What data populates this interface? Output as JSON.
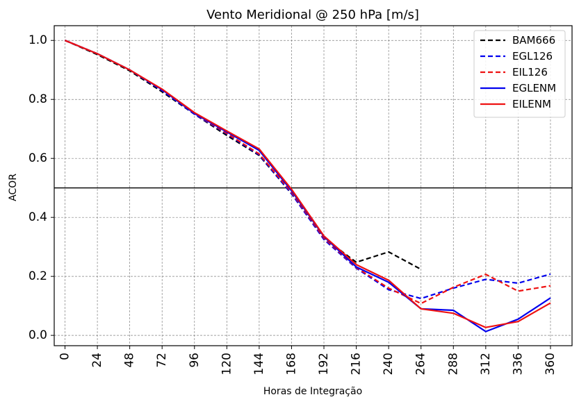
{
  "chart_data": {
    "type": "line",
    "title": "Vento Meridional @ 250 hPa [m/s]",
    "xlabel": "Horas de Integração",
    "ylabel": "ACOR",
    "xlim": [
      -8,
      376
    ],
    "ylim": [
      -0.035,
      1.05
    ],
    "xticks": [
      0,
      24,
      48,
      72,
      96,
      120,
      144,
      168,
      192,
      216,
      240,
      264,
      288,
      312,
      336,
      360
    ],
    "xtick_labels": [
      "0",
      "24",
      "48",
      "72",
      "96",
      "120",
      "144",
      "168",
      "192",
      "216",
      "240",
      "264",
      "288",
      "312",
      "336",
      "360"
    ],
    "yticks": [
      0.0,
      0.2,
      0.4,
      0.6,
      0.8,
      1.0
    ],
    "ytick_labels": [
      "0.0",
      "0.2",
      "0.4",
      "0.6",
      "0.8",
      "1.0"
    ],
    "grid": true,
    "reference_line": {
      "y": 0.5,
      "color": "#000000"
    },
    "legend_position": "top-right",
    "series": [
      {
        "name": "BAM666",
        "color": "#000000",
        "style": "dashed",
        "x": [
          0,
          24,
          48,
          72,
          96,
          120,
          144,
          168,
          192,
          216,
          240,
          264
        ],
        "values": [
          1.0,
          0.952,
          0.897,
          0.826,
          0.75,
          0.678,
          0.61,
          0.48,
          0.33,
          0.248,
          0.283,
          0.224
        ]
      },
      {
        "name": "EGL126",
        "color": "#0000ee",
        "style": "dashed",
        "x": [
          0,
          24,
          48,
          72,
          96,
          120,
          144,
          168,
          192,
          216,
          240,
          264,
          288,
          312,
          336,
          360
        ],
        "values": [
          1.0,
          0.955,
          0.9,
          0.83,
          0.75,
          0.683,
          0.612,
          0.48,
          0.325,
          0.228,
          0.155,
          0.125,
          0.16,
          0.19,
          0.177,
          0.208
        ]
      },
      {
        "name": "EIL126",
        "color": "#ee1111",
        "style": "dashed",
        "x": [
          0,
          24,
          48,
          72,
          96,
          120,
          144,
          168,
          192,
          216,
          240,
          264,
          288,
          312,
          336,
          360
        ],
        "values": [
          1.0,
          0.955,
          0.9,
          0.833,
          0.752,
          0.685,
          0.615,
          0.485,
          0.33,
          0.23,
          0.16,
          0.108,
          0.163,
          0.207,
          0.15,
          0.168
        ]
      },
      {
        "name": "EGLENM",
        "color": "#0000ee",
        "style": "solid",
        "x": [
          0,
          24,
          48,
          72,
          96,
          120,
          144,
          168,
          192,
          216,
          240,
          264,
          288,
          312,
          336,
          360
        ],
        "values": [
          1.0,
          0.955,
          0.9,
          0.833,
          0.752,
          0.69,
          0.627,
          0.49,
          0.335,
          0.232,
          0.18,
          0.09,
          0.085,
          0.013,
          0.055,
          0.127
        ]
      },
      {
        "name": "EILENM",
        "color": "#ee1111",
        "style": "solid",
        "x": [
          0,
          24,
          48,
          72,
          96,
          120,
          144,
          168,
          192,
          216,
          240,
          264,
          288,
          312,
          336,
          360
        ],
        "values": [
          1.0,
          0.955,
          0.9,
          0.835,
          0.755,
          0.693,
          0.632,
          0.495,
          0.337,
          0.24,
          0.187,
          0.09,
          0.075,
          0.027,
          0.047,
          0.11
        ]
      }
    ]
  }
}
